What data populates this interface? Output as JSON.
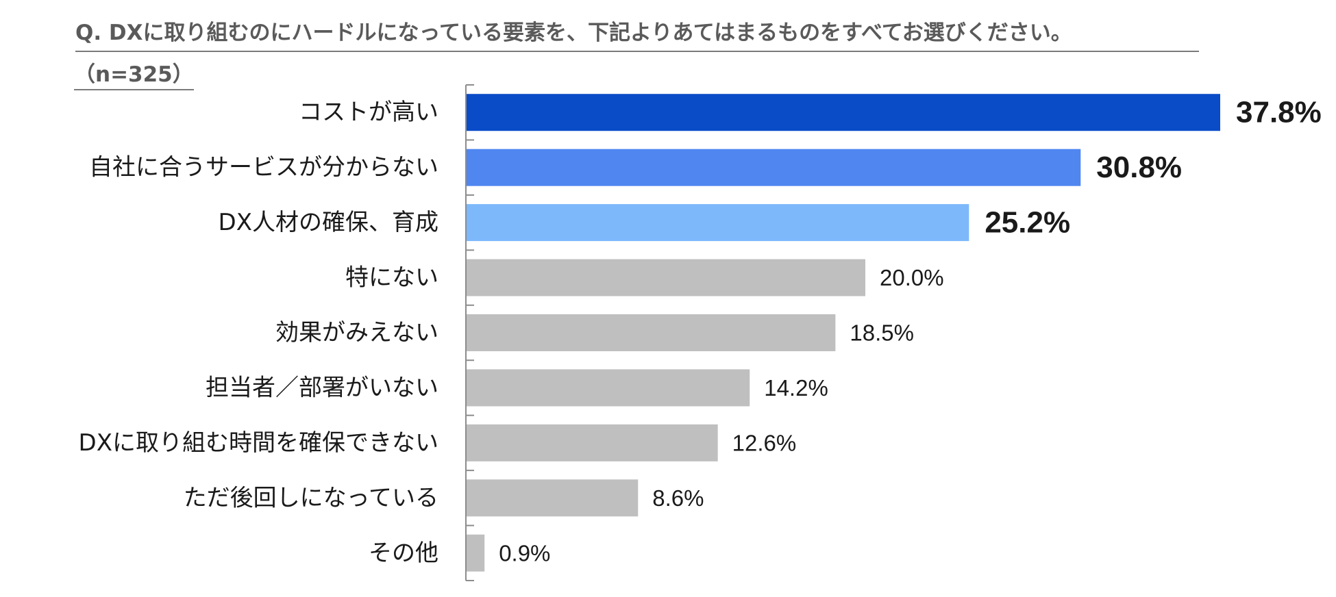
{
  "question": "Q. DXに取り組むのにハードルになっている要素を、下記よりあてはまるものをすべてお選びください。",
  "sample_size": "（n=325）",
  "chart_data": {
    "type": "bar",
    "orientation": "horizontal",
    "categories": [
      "コストが高い",
      "自社に合うサービスが分からない",
      "DX人材の確保、育成",
      "特にない",
      "効果がみえない",
      "担当者／部署がいない",
      "DXに取り組む時間を確保できない",
      "ただ後回しになっている",
      "その他"
    ],
    "values": [
      37.8,
      30.8,
      25.2,
      20.0,
      18.5,
      14.2,
      12.6,
      8.6,
      0.9
    ],
    "value_labels": [
      "37.8%",
      "30.8%",
      "25.2%",
      "20.0%",
      "18.5%",
      "14.2%",
      "12.6%",
      "8.6%",
      "0.9%"
    ],
    "bar_colors": [
      "#0a4bc8",
      "#4f86f0",
      "#7db8fb",
      "#bfbfbf",
      "#bfbfbf",
      "#bfbfbf",
      "#bfbfbf",
      "#bfbfbf",
      "#bfbfbf"
    ],
    "highlight_top": 3,
    "xlim": [
      0,
      40
    ],
    "grid": false,
    "legend": "none"
  }
}
